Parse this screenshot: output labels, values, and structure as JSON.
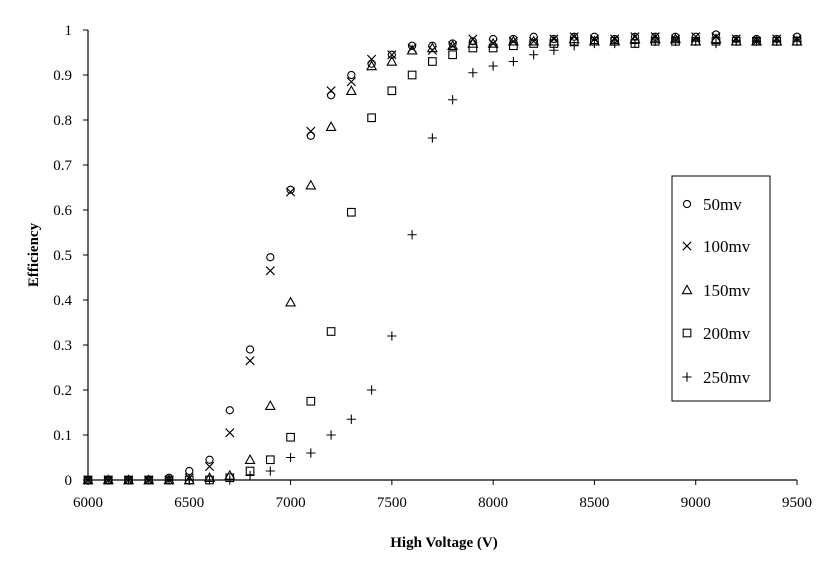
{
  "chart_data": {
    "type": "scatter",
    "title": "",
    "xlabel": "High Voltage (V)",
    "ylabel": "Efficiency",
    "xlim": [
      6000,
      9500
    ],
    "ylim": [
      0,
      1
    ],
    "xticks": [
      6000,
      6500,
      7000,
      7500,
      8000,
      8500,
      9000,
      9500
    ],
    "yticks": [
      0,
      0.1,
      0.2,
      0.3,
      0.4,
      0.5,
      0.6,
      0.7,
      0.8,
      0.9,
      1
    ],
    "xtick_labels": [
      "6000",
      "6500",
      "7000",
      "7500",
      "8000",
      "8500",
      "9000",
      "9500"
    ],
    "ytick_labels": [
      "0",
      "0.1",
      "0.2",
      "0.3",
      "0.4",
      "0.5",
      "0.6",
      "0.7",
      "0.8",
      "0.9",
      "1"
    ],
    "grid": false,
    "legend_position": "right",
    "series": [
      {
        "name": "50mv",
        "marker": "circle",
        "x": [
          6000,
          6100,
          6200,
          6300,
          6400,
          6500,
          6600,
          6700,
          6800,
          6900,
          7000,
          7100,
          7200,
          7300,
          7400,
          7500,
          7600,
          7700,
          7800,
          7900,
          8000,
          8100,
          8200,
          8300,
          8400,
          8500,
          8600,
          8700,
          8800,
          8900,
          9000,
          9100,
          9200,
          9300,
          9400,
          9500
        ],
        "y": [
          0,
          0,
          0,
          0,
          0.005,
          0.02,
          0.045,
          0.155,
          0.29,
          0.495,
          0.645,
          0.765,
          0.855,
          0.9,
          0.925,
          0.945,
          0.965,
          0.965,
          0.97,
          0.975,
          0.98,
          0.98,
          0.985,
          0.98,
          0.985,
          0.985,
          0.98,
          0.985,
          0.985,
          0.985,
          0.985,
          0.99,
          0.98,
          0.98,
          0.98,
          0.985
        ]
      },
      {
        "name": "100mv",
        "marker": "cross",
        "x": [
          6000,
          6100,
          6200,
          6300,
          6400,
          6500,
          6600,
          6700,
          6800,
          6900,
          7000,
          7100,
          7200,
          7300,
          7400,
          7500,
          7600,
          7700,
          7800,
          7900,
          8000,
          8100,
          8200,
          8300,
          8400,
          8500,
          8600,
          8700,
          8800,
          8900,
          9000,
          9100,
          9200,
          9300,
          9400,
          9500
        ],
        "y": [
          0,
          0,
          0,
          0,
          0,
          0.005,
          0.03,
          0.105,
          0.265,
          0.465,
          0.64,
          0.775,
          0.865,
          0.885,
          0.935,
          0.945,
          0.96,
          0.955,
          0.965,
          0.98,
          0.97,
          0.975,
          0.975,
          0.98,
          0.985,
          0.98,
          0.98,
          0.985,
          0.985,
          0.98,
          0.985,
          0.985,
          0.98,
          0.975,
          0.98,
          0.98
        ]
      },
      {
        "name": "150mv",
        "marker": "triangle",
        "x": [
          6000,
          6100,
          6200,
          6300,
          6400,
          6500,
          6600,
          6700,
          6800,
          6900,
          7000,
          7100,
          7200,
          7300,
          7400,
          7500,
          7600,
          7700,
          7800,
          7900,
          8000,
          8100,
          8200,
          8300,
          8400,
          8500,
          8600,
          8700,
          8800,
          8900,
          9000,
          9100,
          9200,
          9300,
          9400,
          9500
        ],
        "y": [
          0,
          0,
          0,
          0,
          0,
          0,
          0.005,
          0.01,
          0.045,
          0.165,
          0.395,
          0.655,
          0.785,
          0.865,
          0.92,
          0.93,
          0.955,
          0.96,
          0.965,
          0.97,
          0.97,
          0.975,
          0.975,
          0.975,
          0.98,
          0.975,
          0.975,
          0.98,
          0.98,
          0.98,
          0.975,
          0.98,
          0.975,
          0.975,
          0.975,
          0.975
        ]
      },
      {
        "name": "200mv",
        "marker": "square",
        "x": [
          6000,
          6100,
          6200,
          6300,
          6400,
          6500,
          6600,
          6700,
          6800,
          6900,
          7000,
          7100,
          7200,
          7300,
          7400,
          7500,
          7600,
          7700,
          7800,
          7900,
          8000,
          8100,
          8200,
          8300,
          8400,
          8500,
          8600,
          8700,
          8800,
          8900,
          9000,
          9100,
          9200,
          9300,
          9400,
          9500
        ],
        "y": [
          0,
          0,
          0,
          0,
          0,
          0,
          0,
          0.005,
          0.02,
          0.045,
          0.095,
          0.175,
          0.33,
          0.595,
          0.805,
          0.865,
          0.9,
          0.93,
          0.945,
          0.96,
          0.96,
          0.965,
          0.97,
          0.97,
          0.975,
          0.975,
          0.975,
          0.97,
          0.975,
          0.975,
          0.975,
          0.975,
          0.975,
          0.975,
          0.975,
          0.975
        ]
      },
      {
        "name": "250mv",
        "marker": "plus",
        "x": [
          6000,
          6100,
          6200,
          6300,
          6400,
          6500,
          6600,
          6700,
          6800,
          6900,
          7000,
          7100,
          7200,
          7300,
          7400,
          7500,
          7600,
          7700,
          7800,
          7900,
          8000,
          8100,
          8200,
          8300,
          8400,
          8500,
          8600,
          8700,
          8800,
          8900,
          9000,
          9100,
          9200,
          9300,
          9400,
          9500
        ],
        "y": [
          0,
          0,
          0,
          0,
          0,
          0,
          0,
          0,
          0.01,
          0.02,
          0.05,
          0.06,
          0.1,
          0.135,
          0.2,
          0.32,
          0.545,
          0.76,
          0.845,
          0.905,
          0.92,
          0.93,
          0.945,
          0.955,
          0.965,
          0.97,
          0.97,
          0.97,
          0.975,
          0.975,
          0.975,
          0.97,
          0.975,
          0.975,
          0.975,
          0.975
        ]
      }
    ]
  }
}
